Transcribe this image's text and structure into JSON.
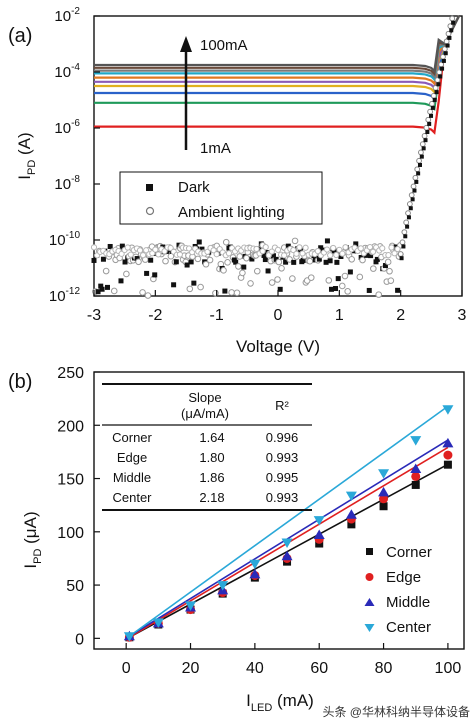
{
  "figure": {
    "watermark": "头条 @华林科纳半导体设备"
  },
  "chart_data": [
    {
      "panel_label": "(a)",
      "type": "line",
      "y_scale": "log",
      "xlabel": "Voltage (V)",
      "ylabel_main": "I",
      "ylabel_sub": "PD",
      "ylabel_unit": " (A)",
      "xlim": [
        -3,
        3
      ],
      "ylim_exp": [
        -12,
        -2
      ],
      "x_ticks": [
        "-3",
        "-2",
        "-1",
        "0",
        "1",
        "2",
        "3"
      ],
      "y_ticks": [
        {
          "exp": -2,
          "label": "10",
          "sup": "-2"
        },
        {
          "exp": -4,
          "label": "10",
          "sup": "-4"
        },
        {
          "exp": -6,
          "label": "10",
          "sup": "-6"
        },
        {
          "exp": -8,
          "label": "10",
          "sup": "-8"
        },
        {
          "exp": -10,
          "label": "10",
          "sup": "-10"
        },
        {
          "exp": -12,
          "label": "10",
          "sup": "-12"
        }
      ],
      "annotation_top": "100mA",
      "annotation_bottom": "1mA",
      "legend": [
        {
          "name": "Dark",
          "marker": "filled-square"
        },
        {
          "name": "Ambient lighting",
          "marker": "open-circle"
        }
      ],
      "photocurrent_curves": [
        {
          "color": "#e02020",
          "log_current": -5.95
        },
        {
          "color": "#1f9a5a",
          "log_current": -5.1
        },
        {
          "color": "#2a62c9",
          "log_current": -4.75
        },
        {
          "color": "#e0b020",
          "log_current": -4.5
        },
        {
          "color": "#8a5ab8",
          "log_current": -4.35
        },
        {
          "color": "#e07820",
          "log_current": -4.2
        },
        {
          "color": "#20a8c8",
          "log_current": -4.05
        },
        {
          "color": "#7a7a7a",
          "log_current": -3.95
        },
        {
          "color": "#6a4a3a",
          "log_current": -3.85
        },
        {
          "color": "#555555",
          "log_current": -3.75
        }
      ],
      "dark_current": {
        "plateau_log_current": -10.5,
        "scatter_range": [
          -12,
          -10
        ],
        "onset_voltage": 2.0,
        "steep_rise_end": {
          "x": 2.85,
          "log_current": -2.0
        }
      }
    },
    {
      "panel_label": "(b)",
      "type": "scatter",
      "xlabel_main": "I",
      "xlabel_sub": "LED",
      "xlabel_unit": " (mA)",
      "ylabel_main": "I",
      "ylabel_sub": "PD",
      "ylabel_unit": " (μA)",
      "xlim": [
        -10,
        105
      ],
      "ylim": [
        -10,
        250
      ],
      "x_ticks": [
        0,
        20,
        40,
        60,
        80,
        100
      ],
      "y_ticks": [
        0,
        50,
        100,
        150,
        200,
        250
      ],
      "x": [
        1,
        10,
        20,
        30,
        40,
        50,
        60,
        70,
        80,
        90,
        100
      ],
      "series": [
        {
          "name": "Corner",
          "marker": "square",
          "color": "#111111",
          "slope": 1.64,
          "values": [
            1,
            13,
            27,
            42,
            57,
            72,
            89,
            107,
            124,
            144,
            163
          ]
        },
        {
          "name": "Edge",
          "marker": "circle",
          "color": "#e02020",
          "slope": 1.8,
          "values": [
            1,
            14,
            27,
            43,
            59,
            75,
            93,
            112,
            131,
            152,
            172
          ]
        },
        {
          "name": "Middle",
          "marker": "triangle-up",
          "color": "#2a2ab8",
          "slope": 1.86,
          "values": [
            2,
            14,
            29,
            45,
            60,
            77,
            97,
            116,
            137,
            159,
            183
          ]
        },
        {
          "name": "Center",
          "marker": "triangle-down",
          "color": "#2aa8d8",
          "slope": 2.18,
          "values": [
            2,
            15,
            31,
            50,
            70,
            90,
            111,
            134,
            155,
            186,
            215
          ]
        }
      ],
      "table": {
        "headers": [
          "",
          "Slope",
          "R²"
        ],
        "header_sub": "(μA/mA)",
        "rows": [
          [
            "Corner",
            "1.64",
            "0.996"
          ],
          [
            "Edge",
            "1.80",
            "0.993"
          ],
          [
            "Middle",
            "1.86",
            "0.995"
          ],
          [
            "Center",
            "2.18",
            "0.993"
          ]
        ]
      }
    }
  ]
}
